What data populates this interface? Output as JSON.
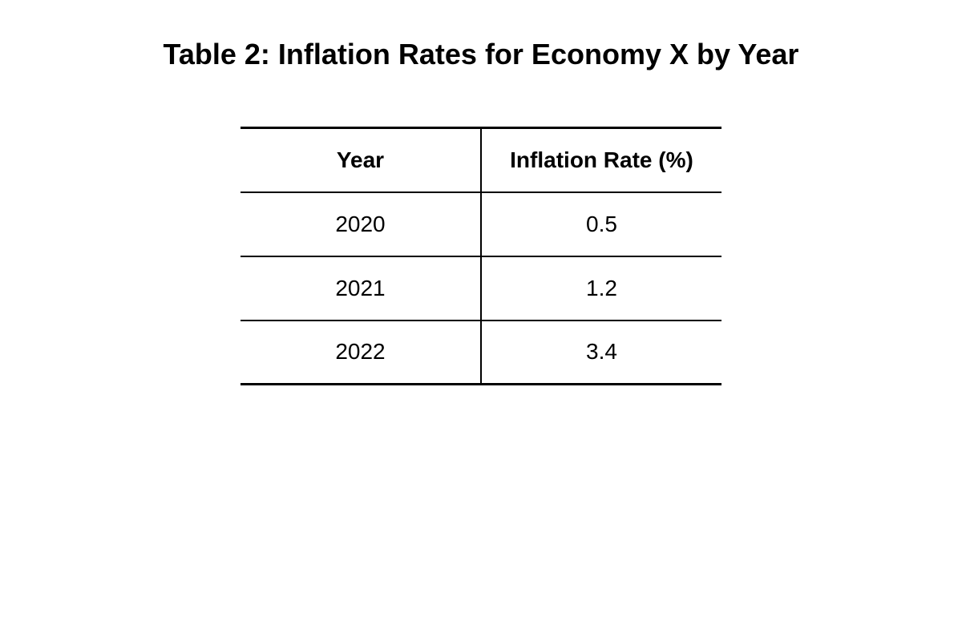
{
  "title": "Table 2: Inflation Rates for Economy X by Year",
  "chart_data": {
    "type": "table",
    "title": "Table 2: Inflation Rates for Economy X by Year",
    "columns": [
      "Year",
      "Inflation Rate (%)"
    ],
    "rows": [
      [
        "2020",
        "0.5"
      ],
      [
        "2021",
        "1.2"
      ],
      [
        "2022",
        "3.4"
      ]
    ]
  }
}
